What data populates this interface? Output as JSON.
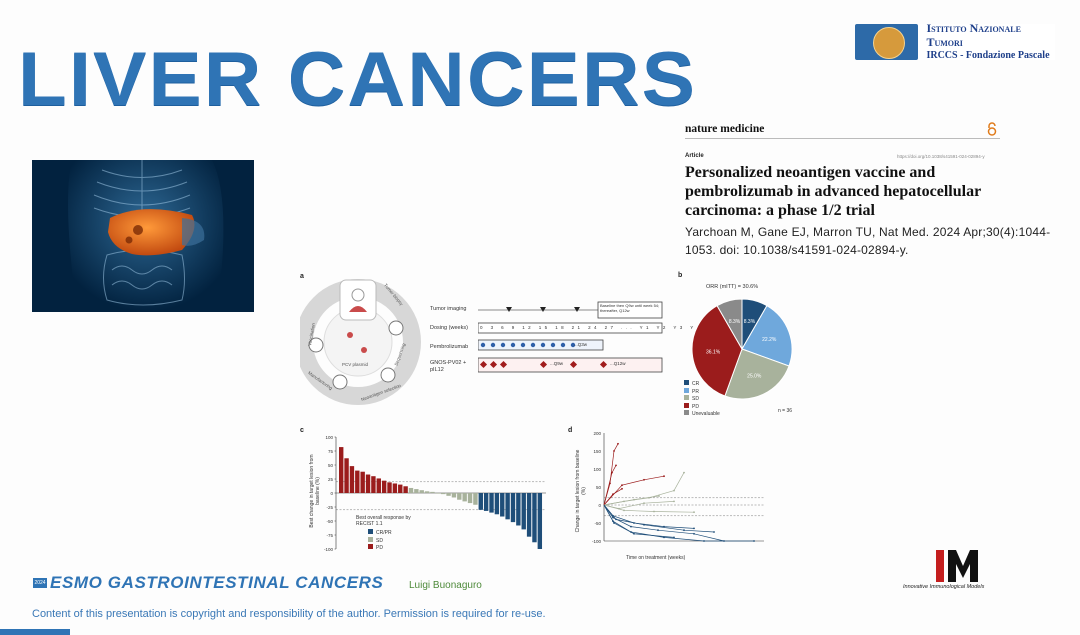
{
  "slide": {
    "title": "LIVER CANCERS"
  },
  "institute": {
    "line1": "Istituto Nazionale Tumori",
    "line2": "IRCCS - Fondazione Pascale"
  },
  "article": {
    "journal": "nature medicine",
    "type": "Article",
    "doi_link": "https://doi.org/10.1038/s41591-024-02894-y",
    "title": "Personalized neoantigen vaccine and pembrolizumab in advanced hepatocellular carcinoma: a phase 1/2 trial",
    "citation": "Yarchoan M, Gane EJ, Marron TU, Nat Med. 2024 Apr;30(4):1044-1053. doi: 10.1038/s41591-024-02894-y."
  },
  "figure": {
    "panel_a": {
      "label": "a",
      "rows": [
        "Tumor imaging",
        "Dosing (weeks)",
        "Pembrolizumab",
        "GNOS-PV02 + pIL12"
      ],
      "weeks": [
        "0",
        "3",
        "6",
        "9",
        "12",
        "15",
        "18",
        "21",
        "24",
        "27",
        "...",
        "Y1",
        "Y2",
        "Y3",
        "Y4",
        "Y5"
      ],
      "imaging_note": "Baseline then Q9w until week 54; thereafter, Q12w",
      "pembro_note": "...Q3w",
      "vaccine_note_1": "...Q9w",
      "vaccine_note_2": "...Q12w",
      "cycle_steps": [
        "Tumor biopsy",
        "Sequencing",
        "Neoantigen selection",
        "Manufacturing",
        "PCV plasmid",
        "Vaccination"
      ]
    },
    "panel_b": {
      "label": "b",
      "title": "ORR (mITT) = 30.6%",
      "n_label": "n = 36",
      "legend": [
        "CR",
        "PR",
        "SD",
        "PD",
        "Unevaluable"
      ]
    },
    "panel_c": {
      "label": "c",
      "ylabel": "Best change in target lesion from baseline (%)",
      "yticks": [
        "100",
        "75",
        "50",
        "25",
        "0",
        "-25",
        "-50",
        "-75",
        "-100"
      ],
      "legend_title": "Best overall response by RECIST 1.1",
      "legend": [
        "CR/PR",
        "SD",
        "PD"
      ]
    },
    "panel_d": {
      "label": "d",
      "ylabel": "Change in target lesion from baseline (%)",
      "xlabel": "Time on treatment (weeks)",
      "yticks": [
        "200",
        "150",
        "100",
        "50",
        "0",
        "-50",
        "-100"
      ]
    }
  },
  "chart_data": [
    {
      "type": "pie",
      "title": "ORR (mITT) = 30.6%",
      "labels": [
        "CR",
        "PR",
        "SD",
        "PD",
        "Unevaluable"
      ],
      "values": [
        8.3,
        22.2,
        25.0,
        36.1,
        8.3
      ],
      "colors": [
        "#1f4e79",
        "#6fa8dc",
        "#a8b29c",
        "#9b1c1c",
        "#8a8a8a"
      ]
    },
    {
      "type": "bar",
      "title": "",
      "ylabel": "Best change in target lesion from baseline (%)",
      "ylim": [
        -100,
        100
      ],
      "series": [
        {
          "name": "PD",
          "values": [
            82,
            62,
            48,
            40,
            38,
            33,
            30,
            26,
            22,
            19,
            17,
            15,
            12
          ]
        },
        {
          "name": "SD",
          "values": [
            9,
            7,
            5,
            3,
            2,
            0,
            -2,
            -5,
            -8,
            -12,
            -15,
            -18,
            -21
          ]
        },
        {
          "name": "CR/PR",
          "values": [
            -30,
            -32,
            -35,
            -38,
            -42,
            -47,
            -52,
            -58,
            -65,
            -78,
            -88,
            -100
          ]
        }
      ]
    },
    {
      "type": "line",
      "title": "",
      "xlabel": "Time on treatment (weeks)",
      "ylabel": "Change in target lesion from baseline (%)",
      "ylim": [
        -100,
        200
      ],
      "xlim": [
        0,
        160
      ]
    }
  ],
  "footer": {
    "conf_year": "2024",
    "conference": "ESMO GASTROINTESTINAL CANCERS",
    "speaker": "Luigi Buonaguro",
    "copyright": "Content of this presentation is copyright and responsibility of the author. Permission is required for re-use.",
    "im_letters": "IM",
    "im_caption": "Innovative Immunological Models"
  },
  "colors": {
    "title_blue": "#2f74b5",
    "cr_pr": "#1f4e79",
    "sd": "#a8b29c",
    "pd": "#9b1c1c"
  }
}
